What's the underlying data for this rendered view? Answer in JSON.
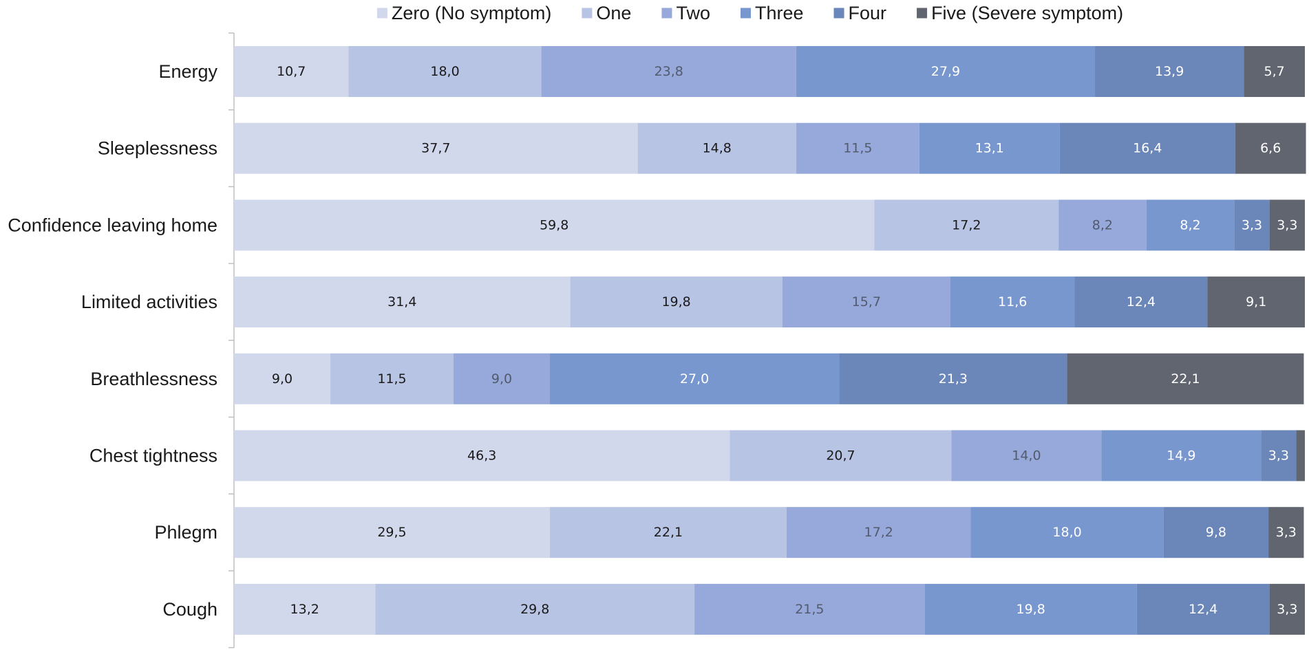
{
  "chart_data": {
    "type": "bar",
    "orientation": "horizontal",
    "stacked": true,
    "title": "",
    "xlabel": "",
    "ylabel": "",
    "xlim": [
      0,
      100
    ],
    "legend_position": "top",
    "categories": [
      "Energy",
      "Sleeplessness",
      "Confidence leaving home",
      "Limited activities",
      "Breathlessness",
      "Chest tightness",
      "Phlegm",
      "Cough"
    ],
    "series": [
      {
        "name": "Zero (No symptom)",
        "color": "#d2d8ec",
        "label_color": "#1a1a1a",
        "values": [
          10.7,
          37.7,
          59.8,
          31.4,
          9.0,
          46.3,
          29.5,
          13.2
        ],
        "labels": [
          "10,7",
          "37,7",
          "59,8",
          "31,4",
          "9,0",
          "46,3",
          "29,5",
          "13,2"
        ]
      },
      {
        "name": "One",
        "color": "#b8c4e4",
        "label_color": "#1a1a1a",
        "values": [
          18.0,
          14.8,
          17.2,
          19.8,
          11.5,
          20.7,
          22.1,
          29.8
        ],
        "labels": [
          "18,0",
          "14,8",
          "17,2",
          "19,8",
          "11,5",
          "20,7",
          "22,1",
          "29,8"
        ]
      },
      {
        "name": "Two",
        "color": "#96a9da",
        "label_color": "#525a6e",
        "values": [
          23.8,
          11.5,
          8.2,
          15.7,
          9.0,
          14.0,
          17.2,
          21.5
        ],
        "labels": [
          "23,8",
          "11,5",
          "8,2",
          "15,7",
          "9,0",
          "14,0",
          "17,2",
          "21,5"
        ]
      },
      {
        "name": "Three",
        "color": "#7897cf",
        "label_color": "#ffffff",
        "values": [
          27.9,
          13.1,
          8.2,
          11.6,
          27.0,
          14.9,
          18.0,
          19.8
        ],
        "labels": [
          "27,9",
          "13,1",
          "8,2",
          "11,6",
          "27,0",
          "14,9",
          "18,0",
          "19,8"
        ]
      },
      {
        "name": "Four",
        "color": "#6b86b8",
        "label_color": "#ffffff",
        "values": [
          13.9,
          16.4,
          3.3,
          12.4,
          21.3,
          3.3,
          9.8,
          12.4
        ],
        "labels": [
          "13,9",
          "16,4",
          "3,3",
          "12,4",
          "21,3",
          "3,3",
          "9,8",
          "12,4"
        ]
      },
      {
        "name": "Five (Severe symptom)",
        "color": "#60656f",
        "label_color": "#ffffff",
        "values": [
          5.7,
          6.6,
          3.3,
          9.1,
          22.1,
          0.8,
          3.3,
          3.3
        ],
        "labels": [
          "5,7",
          "6,6",
          "3,3",
          "9,1",
          "22,1",
          "",
          "3,3",
          "3,3"
        ]
      }
    ]
  }
}
